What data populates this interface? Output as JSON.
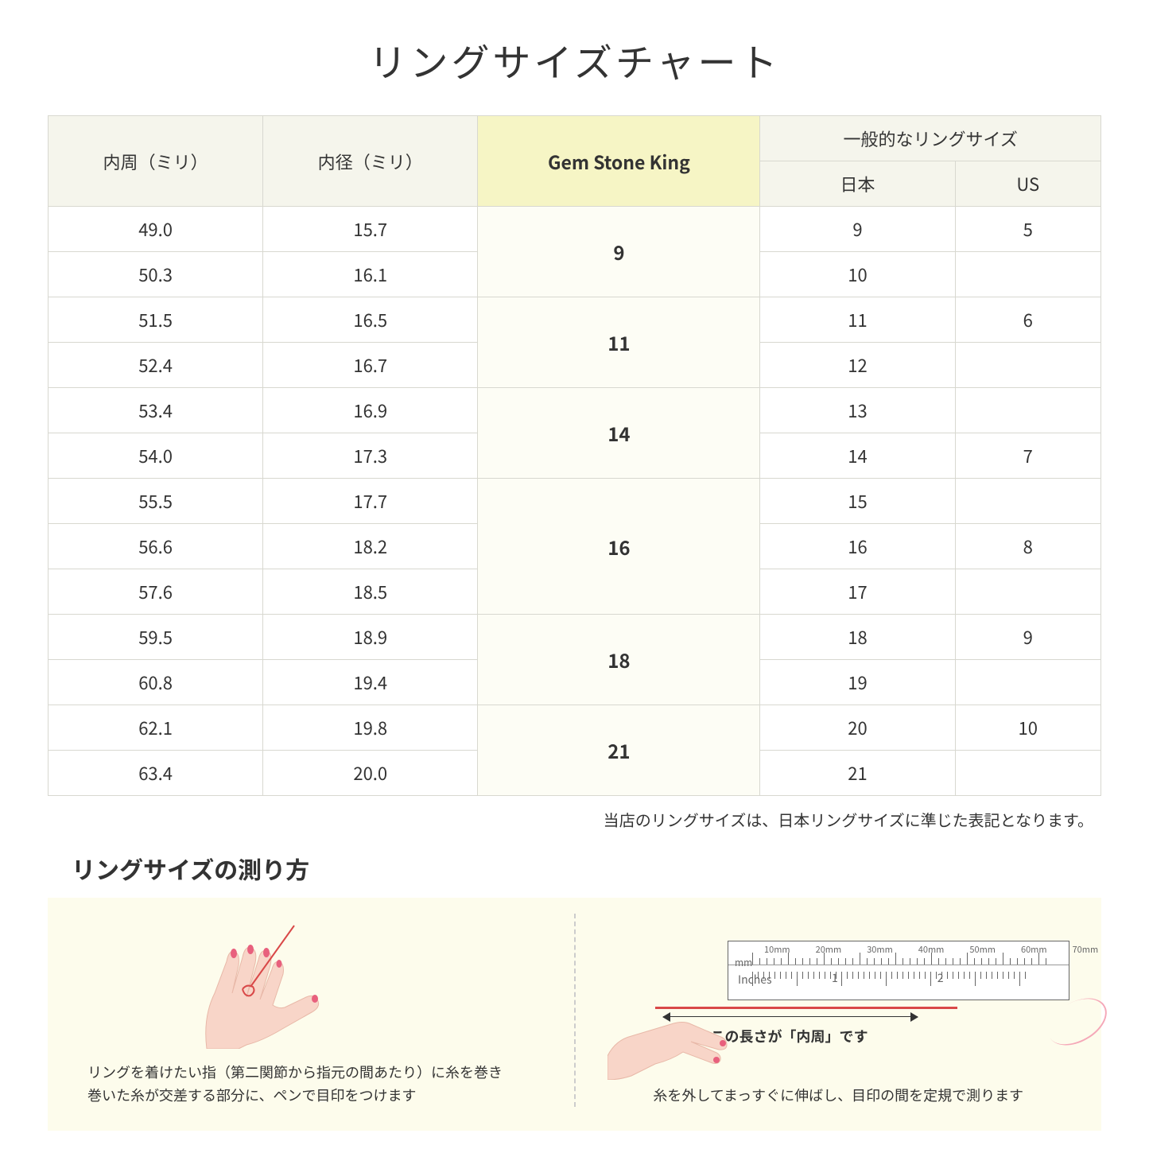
{
  "title": "リングサイズチャート",
  "headers": {
    "col1": "内周（ミリ）",
    "col2": "内径（ミリ）",
    "col3": "Gem Stone King",
    "col4_group": "一般的なリングサイズ",
    "col4a": "日本",
    "col4b": "US"
  },
  "rows": [
    {
      "c1": "49.0",
      "c2": "15.7",
      "gsk": "9",
      "gsk_span": 2,
      "jp": "9",
      "us": "5"
    },
    {
      "c1": "50.3",
      "c2": "16.1",
      "jp": "10",
      "us": ""
    },
    {
      "c1": "51.5",
      "c2": "16.5",
      "gsk": "11",
      "gsk_span": 2,
      "jp": "11",
      "us": "6"
    },
    {
      "c1": "52.4",
      "c2": "16.7",
      "jp": "12",
      "us": ""
    },
    {
      "c1": "53.4",
      "c2": "16.9",
      "gsk": "14",
      "gsk_span": 2,
      "jp": "13",
      "us": ""
    },
    {
      "c1": "54.0",
      "c2": "17.3",
      "jp": "14",
      "us": "7"
    },
    {
      "c1": "55.5",
      "c2": "17.7",
      "gsk": "16",
      "gsk_span": 3,
      "jp": "15",
      "us": ""
    },
    {
      "c1": "56.6",
      "c2": "18.2",
      "jp": "16",
      "us": "8"
    },
    {
      "c1": "57.6",
      "c2": "18.5",
      "jp": "17",
      "us": ""
    },
    {
      "c1": "59.5",
      "c2": "18.9",
      "gsk": "18",
      "gsk_span": 2,
      "jp": "18",
      "us": "9"
    },
    {
      "c1": "60.8",
      "c2": "19.4",
      "jp": "19",
      "us": ""
    },
    {
      "c1": "62.1",
      "c2": "19.8",
      "gsk": "21",
      "gsk_span": 2,
      "jp": "20",
      "us": "10"
    },
    {
      "c1": "63.4",
      "c2": "20.0",
      "jp": "21",
      "us": ""
    }
  ],
  "note": "当店のリングサイズは、日本リングサイズに準じた表記となります。",
  "subtitle": "リングサイズの測り方",
  "instruction1_line1": "リングを着けたい指（第二関節から指元の間あたり）に糸を巻き",
  "instruction1_line2": "巻いた糸が交差する部分に、ペンで目印をつけます",
  "instruction2": "糸を外してまっすぐに伸ばし、目印の間を定規で測ります",
  "arrow_label": "この長さが「内周」です",
  "ruler_mm_labels": [
    "10mm",
    "20mm",
    "30mm",
    "40mm",
    "50mm",
    "60mm",
    "70mm"
  ],
  "ruler_mm_text": "mm",
  "ruler_inches_text": "Inches",
  "ruler_inch_nums": [
    "1",
    "2"
  ],
  "colors": {
    "header_bg": "#f5f5ec",
    "highlight_header_bg": "#f6f5c5",
    "highlight_cell_bg": "#fdfdf5",
    "border": "#d8d8d0",
    "instruction_bg": "#fdfcec",
    "skin": "#f8d5c8",
    "nail": "#e8607d",
    "thread": "#d94848",
    "thread_light": "#f5a8b8"
  }
}
